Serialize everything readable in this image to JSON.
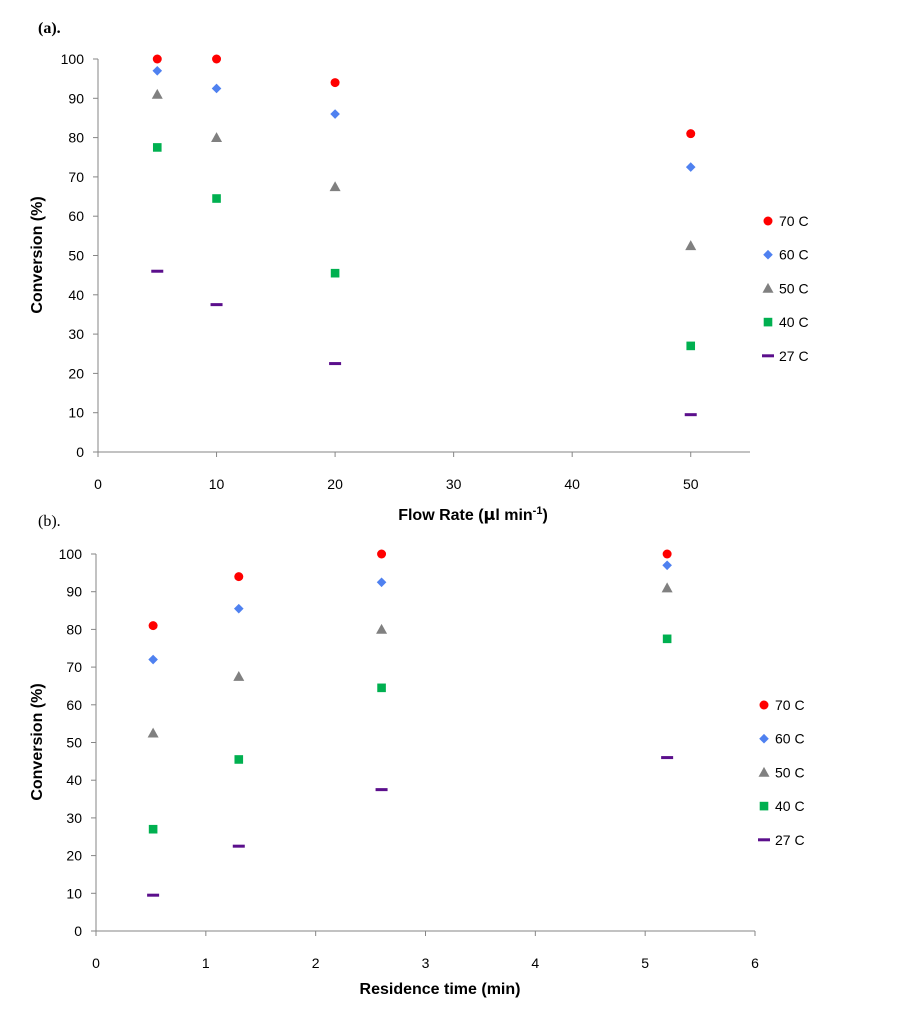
{
  "chart_data": [
    {
      "type": "scatter",
      "panel_label": "(a).",
      "xlabel": "Flow Rate (μl min⁻¹)",
      "xlabel_main": "Flow Rate (",
      "xlabel_mu": "μ",
      "xlabel_rest": "l min",
      "xlabel_sup": "-1",
      "xlabel_close": ")",
      "ylabel": "Conversion (%)",
      "xlim": [
        0,
        55
      ],
      "ylim": [
        0,
        100
      ],
      "xticks": [
        0,
        10,
        20,
        30,
        40,
        50
      ],
      "yticks": [
        0,
        10,
        20,
        30,
        40,
        50,
        60,
        70,
        80,
        90,
        100
      ],
      "grid": false,
      "legend": "right",
      "series": [
        {
          "name": "70 C",
          "marker": "circle",
          "color": "#ff0000",
          "x": [
            5,
            10,
            20,
            50
          ],
          "y": [
            100,
            100,
            94,
            81
          ]
        },
        {
          "name": "60 C",
          "marker": "diamond",
          "color": "#4f81f0",
          "x": [
            5,
            10,
            20,
            50
          ],
          "y": [
            97,
            92.5,
            86,
            72.5
          ]
        },
        {
          "name": "50 C",
          "marker": "triangle",
          "color": "#808080",
          "x": [
            5,
            10,
            20,
            50
          ],
          "y": [
            91,
            80,
            67.5,
            52.5
          ]
        },
        {
          "name": "40 C",
          "marker": "square",
          "color": "#00b050",
          "x": [
            5,
            10,
            20,
            50
          ],
          "y": [
            77.5,
            64.5,
            45.5,
            27
          ]
        },
        {
          "name": "27 C",
          "marker": "dash",
          "color": "#5b0f8c",
          "x": [
            5,
            10,
            20,
            50
          ],
          "y": [
            46,
            37.5,
            22.5,
            9.5
          ]
        }
      ]
    },
    {
      "type": "scatter",
      "panel_label": "(b).",
      "xlabel": "Residence time (min)",
      "ylabel": "Conversion (%)",
      "xlim": [
        0,
        6
      ],
      "ylim": [
        0,
        100
      ],
      "xticks": [
        0,
        1,
        2,
        3,
        4,
        5,
        6
      ],
      "yticks": [
        0,
        10,
        20,
        30,
        40,
        50,
        60,
        70,
        80,
        90,
        100
      ],
      "grid": false,
      "legend": "right",
      "series": [
        {
          "name": "70 C",
          "marker": "circle",
          "color": "#ff0000",
          "x": [
            0.52,
            1.3,
            2.6,
            5.2
          ],
          "y": [
            81,
            94,
            100,
            100
          ]
        },
        {
          "name": "60 C",
          "marker": "diamond",
          "color": "#4f81f0",
          "x": [
            0.52,
            1.3,
            2.6,
            5.2
          ],
          "y": [
            72,
            85.5,
            92.5,
            97
          ]
        },
        {
          "name": "50 C",
          "marker": "triangle",
          "color": "#808080",
          "x": [
            0.52,
            1.3,
            2.6,
            5.2
          ],
          "y": [
            52.5,
            67.5,
            80,
            91
          ]
        },
        {
          "name": "40 C",
          "marker": "square",
          "color": "#00b050",
          "x": [
            0.52,
            1.3,
            2.6,
            5.2
          ],
          "y": [
            27,
            45.5,
            64.5,
            77.5
          ]
        },
        {
          "name": "27 C",
          "marker": "dash",
          "color": "#5b0f8c",
          "x": [
            0.52,
            1.3,
            2.6,
            5.2
          ],
          "y": [
            9.5,
            22.5,
            37.5,
            46
          ]
        }
      ]
    }
  ]
}
